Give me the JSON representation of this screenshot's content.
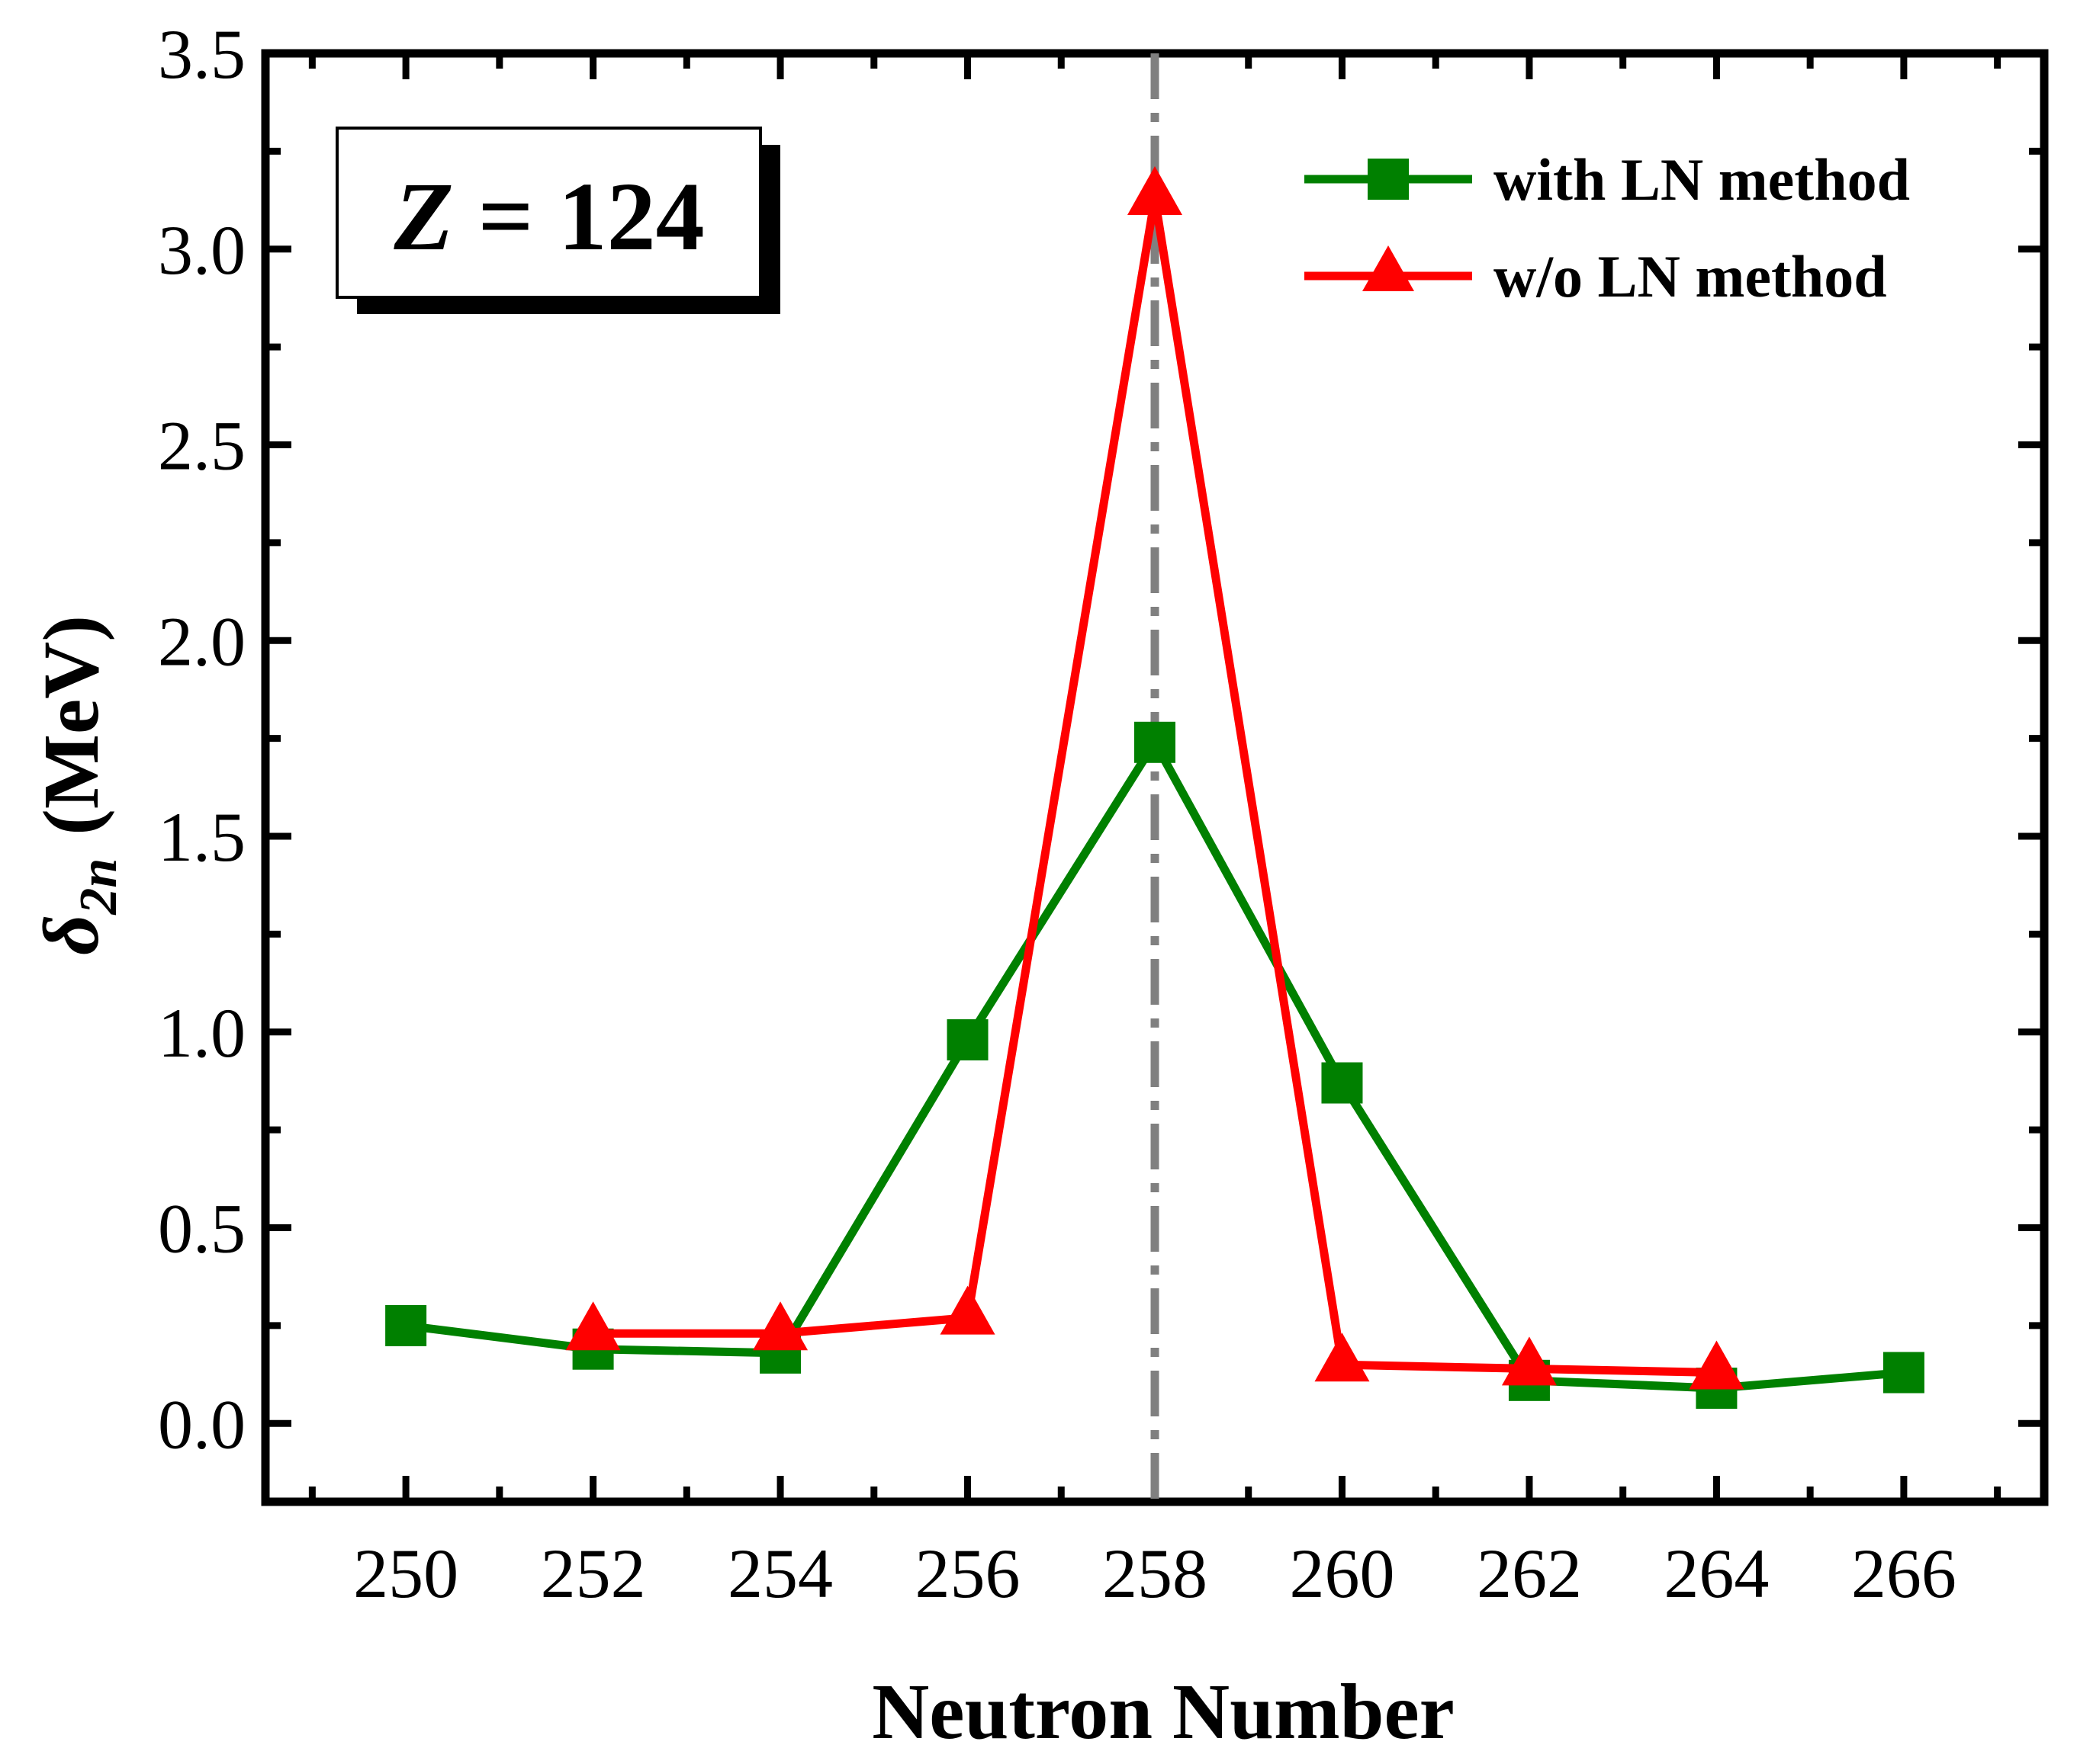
{
  "chart_data": {
    "type": "line",
    "title": "",
    "xlabel": "Neutron Number",
    "ylabel": {
      "symbol": "δ",
      "subscript": "2n",
      "unit": "(MeV)"
    },
    "xlim": [
      248.5,
      267.5
    ],
    "ylim": [
      -0.2,
      3.5
    ],
    "x_ticks": [
      250,
      252,
      254,
      256,
      258,
      260,
      262,
      264,
      266
    ],
    "y_ticks": [
      0.0,
      0.5,
      1.0,
      1.5,
      2.0,
      2.5,
      3.0,
      3.5
    ],
    "y_tick_labels": [
      "0.0",
      "0.5",
      "1.0",
      "1.5",
      "2.0",
      "2.5",
      "3.0",
      "3.5"
    ],
    "vertical_reference_line": {
      "x": 258,
      "style": "dash-dot",
      "color": "#808080"
    },
    "annotation": {
      "var": "Z",
      "rest": " = 124"
    },
    "legend_position": "top-right",
    "series": [
      {
        "name": "with LN method",
        "color": "#008000",
        "marker": "square",
        "x": [
          250,
          252,
          254,
          256,
          258,
          260,
          262,
          264,
          266
        ],
        "values": [
          0.25,
          0.19,
          0.18,
          0.98,
          1.74,
          0.87,
          0.11,
          0.09,
          0.13
        ]
      },
      {
        "name": "w/o LN method",
        "color": "#ff0000",
        "marker": "triangle",
        "x": [
          252,
          254,
          256,
          258,
          260,
          262,
          264
        ],
        "values": [
          0.23,
          0.23,
          0.27,
          3.13,
          0.15,
          0.14,
          0.13
        ]
      }
    ]
  }
}
